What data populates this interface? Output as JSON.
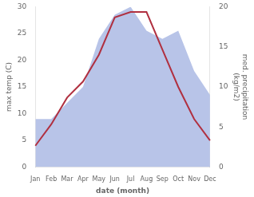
{
  "chart_data": {
    "type": "line",
    "xlabel": "date (month)",
    "ylabel": "max temp (C)",
    "y2label": "med. precipitation\n(kg/m2)",
    "categories": [
      "Jan",
      "Feb",
      "Mar",
      "Apr",
      "May",
      "Jun",
      "Jul",
      "Aug",
      "Sep",
      "Oct",
      "Nov",
      "Dec"
    ],
    "series": [
      {
        "type": "area",
        "axis": "y2",
        "color": "#b8c4e8",
        "values": [
          6,
          6,
          8,
          10,
          16,
          19,
          20,
          17,
          16,
          17,
          12,
          9
        ]
      },
      {
        "type": "line",
        "color": "#b03040",
        "values": [
          4,
          8,
          13,
          16,
          21,
          28,
          29,
          29,
          22,
          15,
          9,
          5
        ]
      }
    ],
    "ylim": [
      0,
      30
    ],
    "yticks": [
      0,
      5,
      10,
      15,
      20,
      25,
      30
    ],
    "y2lim": [
      0,
      20
    ],
    "y2ticks": [
      0,
      5,
      10,
      15,
      20
    ],
    "grid": false
  }
}
